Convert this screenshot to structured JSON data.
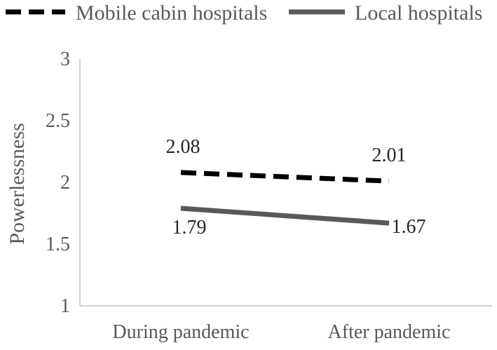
{
  "chart_data": {
    "type": "line",
    "title": "",
    "xlabel": "",
    "ylabel": "Powerlessness",
    "categories": [
      "During pandemic",
      "After pandemic"
    ],
    "ylim": [
      1,
      3
    ],
    "yticks": [
      "1",
      "1.5",
      "2",
      "2.5",
      "3"
    ],
    "grid": false,
    "legend_position": "top",
    "series": [
      {
        "name": "Mobile cabin hospitals",
        "values": [
          2.08,
          2.01
        ],
        "labels": [
          "2.08",
          "2.01"
        ],
        "style": "dashed",
        "color": "#000000"
      },
      {
        "name": "Local hospitals",
        "values": [
          1.79,
          1.67
        ],
        "labels": [
          "1.79",
          "1.67"
        ],
        "style": "solid",
        "color": "#595959"
      }
    ]
  }
}
